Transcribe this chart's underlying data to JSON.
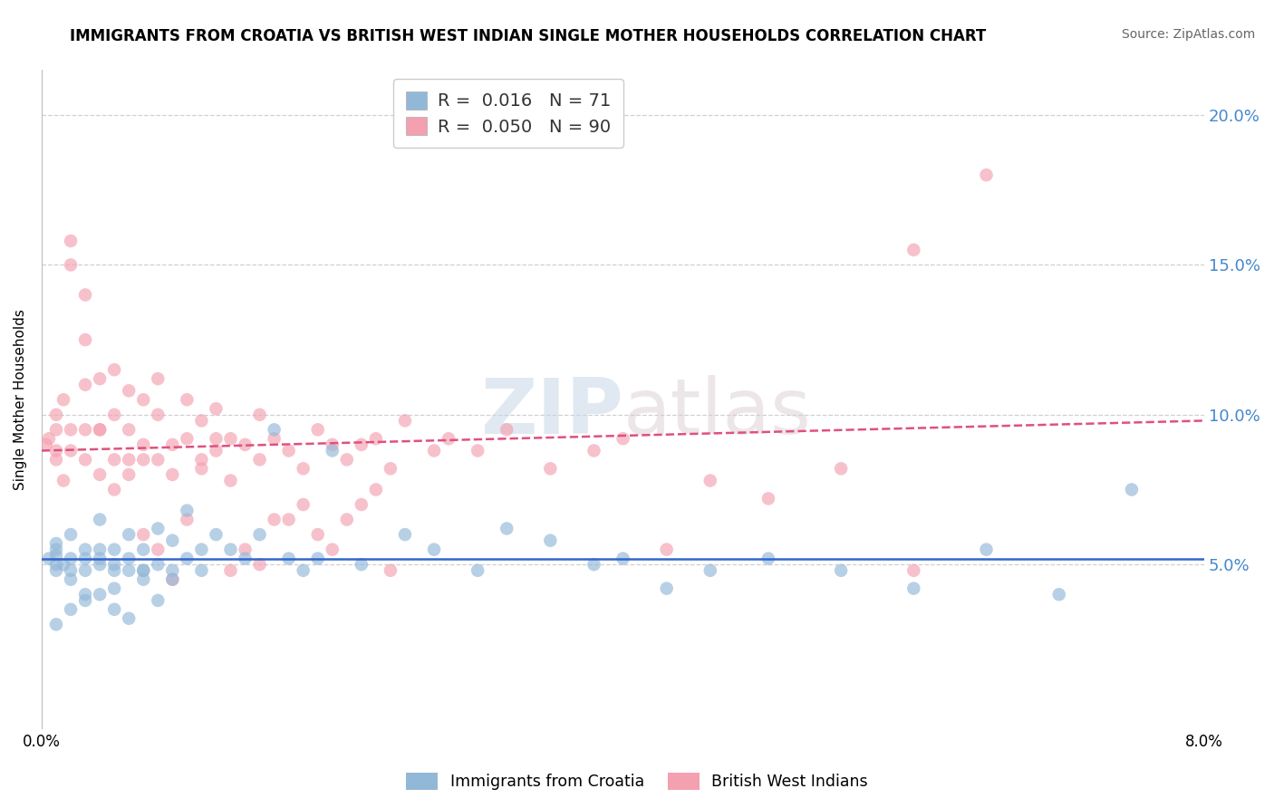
{
  "title": "IMMIGRANTS FROM CROATIA VS BRITISH WEST INDIAN SINGLE MOTHER HOUSEHOLDS CORRELATION CHART",
  "source": "Source: ZipAtlas.com",
  "ylabel": "Single Mother Households",
  "xlim": [
    0.0,
    0.08
  ],
  "ylim": [
    -0.005,
    0.215
  ],
  "plot_ylim": [
    -0.005,
    0.215
  ],
  "ytick_values": [
    0.05,
    0.1,
    0.15,
    0.2
  ],
  "grid_color": "#d0d0d0",
  "background_color": "#ffffff",
  "blue_color": "#92b8d8",
  "pink_color": "#f4a0b0",
  "blue_line_color": "#3366cc",
  "pink_line_color": "#e05080",
  "legend_R_blue": "0.016",
  "legend_N_blue": "71",
  "legend_R_pink": "0.050",
  "legend_N_pink": "90",
  "legend_label_blue": "Immigrants from Croatia",
  "legend_label_pink": "British West Indians",
  "watermark": "ZIPatlas",
  "blue_trend_x0": 0.0,
  "blue_trend_y0": 0.052,
  "blue_trend_x1": 0.08,
  "blue_trend_y1": 0.052,
  "pink_trend_x0": 0.0,
  "pink_trend_y0": 0.088,
  "pink_trend_x1": 0.08,
  "pink_trend_y1": 0.098,
  "blue_scatter_x": [
    0.0005,
    0.001,
    0.001,
    0.001,
    0.001,
    0.001,
    0.0015,
    0.002,
    0.002,
    0.002,
    0.002,
    0.003,
    0.003,
    0.003,
    0.003,
    0.004,
    0.004,
    0.004,
    0.004,
    0.005,
    0.005,
    0.005,
    0.005,
    0.006,
    0.006,
    0.006,
    0.007,
    0.007,
    0.007,
    0.008,
    0.008,
    0.009,
    0.009,
    0.01,
    0.01,
    0.011,
    0.011,
    0.012,
    0.013,
    0.014,
    0.015,
    0.016,
    0.017,
    0.018,
    0.019,
    0.02,
    0.022,
    0.025,
    0.027,
    0.03,
    0.032,
    0.035,
    0.038,
    0.04,
    0.043,
    0.046,
    0.05,
    0.055,
    0.06,
    0.065,
    0.07,
    0.075,
    0.001,
    0.002,
    0.003,
    0.004,
    0.005,
    0.006,
    0.007,
    0.008,
    0.009
  ],
  "blue_scatter_y": [
    0.052,
    0.05,
    0.048,
    0.053,
    0.055,
    0.057,
    0.05,
    0.045,
    0.048,
    0.052,
    0.06,
    0.048,
    0.052,
    0.055,
    0.04,
    0.05,
    0.052,
    0.055,
    0.065,
    0.048,
    0.05,
    0.055,
    0.042,
    0.052,
    0.048,
    0.06,
    0.048,
    0.055,
    0.045,
    0.05,
    0.062,
    0.048,
    0.058,
    0.052,
    0.068,
    0.048,
    0.055,
    0.06,
    0.055,
    0.052,
    0.06,
    0.095,
    0.052,
    0.048,
    0.052,
    0.088,
    0.05,
    0.06,
    0.055,
    0.048,
    0.062,
    0.058,
    0.05,
    0.052,
    0.042,
    0.048,
    0.052,
    0.048,
    0.042,
    0.055,
    0.04,
    0.075,
    0.03,
    0.035,
    0.038,
    0.04,
    0.035,
    0.032,
    0.048,
    0.038,
    0.045
  ],
  "pink_scatter_x": [
    0.0003,
    0.0005,
    0.001,
    0.001,
    0.001,
    0.001,
    0.0015,
    0.0015,
    0.002,
    0.002,
    0.002,
    0.002,
    0.003,
    0.003,
    0.003,
    0.003,
    0.004,
    0.004,
    0.004,
    0.005,
    0.005,
    0.005,
    0.006,
    0.006,
    0.006,
    0.007,
    0.007,
    0.007,
    0.008,
    0.008,
    0.008,
    0.009,
    0.009,
    0.01,
    0.01,
    0.011,
    0.011,
    0.012,
    0.012,
    0.013,
    0.013,
    0.014,
    0.015,
    0.015,
    0.016,
    0.017,
    0.018,
    0.019,
    0.02,
    0.021,
    0.022,
    0.023,
    0.024,
    0.025,
    0.027,
    0.028,
    0.03,
    0.032,
    0.035,
    0.038,
    0.04,
    0.043,
    0.046,
    0.05,
    0.055,
    0.06,
    0.003,
    0.004,
    0.005,
    0.006,
    0.007,
    0.008,
    0.009,
    0.01,
    0.011,
    0.012,
    0.013,
    0.014,
    0.015,
    0.016,
    0.017,
    0.018,
    0.019,
    0.02,
    0.021,
    0.022,
    0.023,
    0.024,
    0.06,
    0.065
  ],
  "pink_scatter_y": [
    0.09,
    0.092,
    0.085,
    0.095,
    0.1,
    0.088,
    0.078,
    0.105,
    0.088,
    0.095,
    0.15,
    0.158,
    0.095,
    0.085,
    0.11,
    0.125,
    0.08,
    0.095,
    0.112,
    0.085,
    0.1,
    0.115,
    0.095,
    0.08,
    0.108,
    0.09,
    0.105,
    0.085,
    0.112,
    0.085,
    0.1,
    0.09,
    0.08,
    0.092,
    0.105,
    0.082,
    0.098,
    0.088,
    0.102,
    0.092,
    0.078,
    0.09,
    0.085,
    0.1,
    0.092,
    0.088,
    0.082,
    0.095,
    0.09,
    0.085,
    0.09,
    0.092,
    0.082,
    0.098,
    0.088,
    0.092,
    0.088,
    0.095,
    0.082,
    0.088,
    0.092,
    0.055,
    0.078,
    0.072,
    0.082,
    0.048,
    0.14,
    0.095,
    0.075,
    0.085,
    0.06,
    0.055,
    0.045,
    0.065,
    0.085,
    0.092,
    0.048,
    0.055,
    0.05,
    0.065,
    0.065,
    0.07,
    0.06,
    0.055,
    0.065,
    0.07,
    0.075,
    0.048,
    0.155,
    0.18
  ]
}
